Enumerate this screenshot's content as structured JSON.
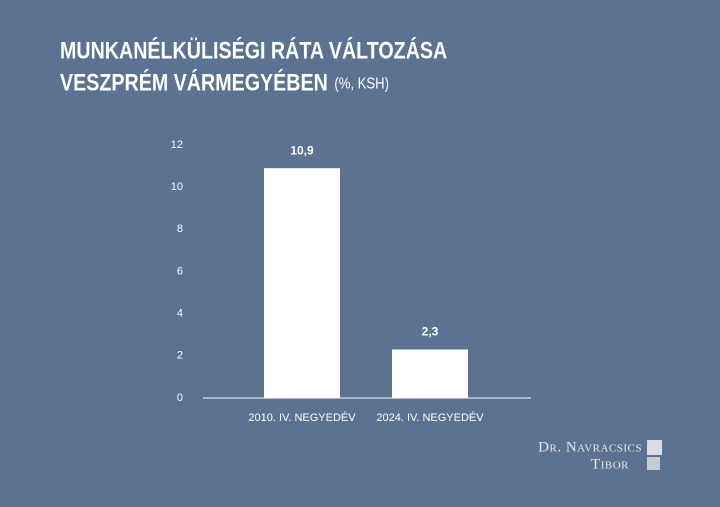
{
  "chart_data": {
    "type": "bar",
    "title": [
      "MUNKANÉLKÜLISÉGI RÁTA VÁLTOZÁSA",
      "VESZPRÉM VÁRMEGYÉBEN"
    ],
    "subtitle": "(%, KSH)",
    "categories": [
      "2010. IV. NEGYEDÉV",
      "2024. IV. NEGYEDÉV"
    ],
    "values": [
      10.9,
      2.3
    ],
    "value_labels": [
      "10,9",
      "2,3"
    ],
    "color": "#ffffff",
    "ylim": [
      0,
      12
    ],
    "yticks": [
      0,
      2,
      4,
      6,
      8,
      10,
      12
    ],
    "grid": false
  },
  "logo": [
    "Dr. Navracsics",
    "Tibor"
  ]
}
